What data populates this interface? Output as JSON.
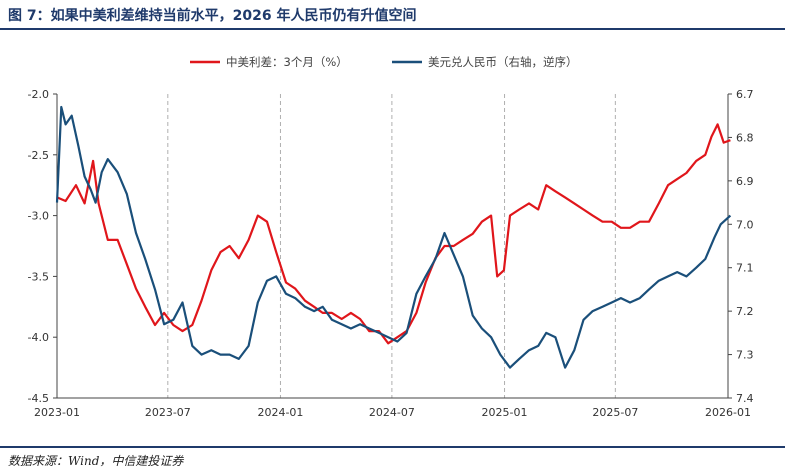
{
  "header": {
    "title": "图 7：如果中美利差维持当前水平，2026 年人民币仍有升值空间"
  },
  "footer": {
    "source": "数据来源：Wind，中信建投证券"
  },
  "chart_data": {
    "type": "line",
    "title": "",
    "legend_placement": "top-center",
    "grid": "vertical dashed gridlines at each x tick",
    "x_axis": {
      "ticks": [
        "2023-01",
        "2023-07",
        "2024-01",
        "2024-07",
        "2025-01",
        "2025-07",
        "2026-01"
      ],
      "range": [
        "2023-01",
        "2026-01"
      ]
    },
    "y_left": {
      "range": [
        -4.5,
        -2.0
      ],
      "ticks": [
        -2.0,
        -2.5,
        -3.0,
        -3.5,
        -4.0,
        -4.5
      ],
      "tick_labels": [
        "-2.0",
        "-2.5",
        "-3.0",
        "-3.5",
        "-4.0",
        "-4.5"
      ]
    },
    "y_right": {
      "range": [
        6.7,
        7.4
      ],
      "inverted": true,
      "ticks": [
        6.7,
        6.8,
        6.9,
        7.0,
        7.1,
        7.2,
        7.3,
        7.4
      ],
      "tick_labels": [
        "6.7",
        "6.8",
        "6.9",
        "7.0",
        "7.1",
        "7.2",
        "7.3",
        "7.4"
      ]
    },
    "series": [
      {
        "name": "中美利差：3个月（%）",
        "axis": "left",
        "color": "#e0161b",
        "points": [
          [
            "2023-01-01",
            -2.85
          ],
          [
            "2023-01-15",
            -2.88
          ],
          [
            "2023-02-01",
            -2.75
          ],
          [
            "2023-02-15",
            -2.9
          ],
          [
            "2023-03-01",
            -2.55
          ],
          [
            "2023-03-10",
            -2.9
          ],
          [
            "2023-03-25",
            -3.2
          ],
          [
            "2023-04-10",
            -3.2
          ],
          [
            "2023-04-25",
            -3.4
          ],
          [
            "2023-05-10",
            -3.6
          ],
          [
            "2023-05-25",
            -3.75
          ],
          [
            "2023-06-10",
            -3.9
          ],
          [
            "2023-06-25",
            -3.8
          ],
          [
            "2023-07-10",
            -3.9
          ],
          [
            "2023-07-25",
            -3.95
          ],
          [
            "2023-08-10",
            -3.9
          ],
          [
            "2023-08-25",
            -3.7
          ],
          [
            "2023-09-10",
            -3.45
          ],
          [
            "2023-09-25",
            -3.3
          ],
          [
            "2023-10-10",
            -3.25
          ],
          [
            "2023-10-25",
            -3.35
          ],
          [
            "2023-11-10",
            -3.2
          ],
          [
            "2023-11-25",
            -3.0
          ],
          [
            "2023-12-10",
            -3.05
          ],
          [
            "2023-12-25",
            -3.3
          ],
          [
            "2024-01-10",
            -3.55
          ],
          [
            "2024-01-25",
            -3.6
          ],
          [
            "2024-02-10",
            -3.7
          ],
          [
            "2024-02-25",
            -3.75
          ],
          [
            "2024-03-10",
            -3.8
          ],
          [
            "2024-03-25",
            -3.8
          ],
          [
            "2024-04-10",
            -3.85
          ],
          [
            "2024-04-25",
            -3.8
          ],
          [
            "2024-05-10",
            -3.85
          ],
          [
            "2024-05-25",
            -3.95
          ],
          [
            "2024-06-10",
            -3.95
          ],
          [
            "2024-06-25",
            -4.05
          ],
          [
            "2024-07-10",
            -4.0
          ],
          [
            "2024-07-25",
            -3.95
          ],
          [
            "2024-08-10",
            -3.8
          ],
          [
            "2024-08-25",
            -3.55
          ],
          [
            "2024-09-10",
            -3.35
          ],
          [
            "2024-09-25",
            -3.25
          ],
          [
            "2024-10-10",
            -3.25
          ],
          [
            "2024-10-25",
            -3.2
          ],
          [
            "2024-11-10",
            -3.15
          ],
          [
            "2024-11-25",
            -3.05
          ],
          [
            "2024-12-10",
            -3.0
          ],
          [
            "2024-12-20",
            -3.5
          ],
          [
            "2024-12-31",
            -3.45
          ],
          [
            "2025-01-10",
            -3.0
          ],
          [
            "2025-01-25",
            -2.95
          ],
          [
            "2025-02-10",
            -2.9
          ],
          [
            "2025-02-25",
            -2.95
          ],
          [
            "2025-03-10",
            -2.75
          ],
          [
            "2025-03-25",
            -2.8
          ],
          [
            "2025-04-10",
            -2.85
          ],
          [
            "2025-04-25",
            -2.9
          ],
          [
            "2025-05-10",
            -2.95
          ],
          [
            "2025-05-25",
            -3.0
          ],
          [
            "2025-06-10",
            -3.05
          ],
          [
            "2025-06-25",
            -3.05
          ],
          [
            "2025-07-10",
            -3.1
          ],
          [
            "2025-07-25",
            -3.1
          ],
          [
            "2025-08-10",
            -3.05
          ],
          [
            "2025-08-25",
            -3.05
          ],
          [
            "2025-09-10",
            -2.9
          ],
          [
            "2025-09-25",
            -2.75
          ],
          [
            "2025-10-10",
            -2.7
          ],
          [
            "2025-10-25",
            -2.65
          ],
          [
            "2025-11-10",
            -2.55
          ],
          [
            "2025-11-25",
            -2.5
          ],
          [
            "2025-12-05",
            -2.35
          ],
          [
            "2025-12-15",
            -2.25
          ],
          [
            "2025-12-25",
            -2.4
          ],
          [
            "2026-01-05",
            -2.38
          ]
        ]
      },
      {
        "name": "美元兑人民币（右轴，逆序）",
        "axis": "right",
        "color": "#1a4f7a",
        "points": [
          [
            "2023-01-01",
            6.95
          ],
          [
            "2023-01-08",
            6.73
          ],
          [
            "2023-01-15",
            6.77
          ],
          [
            "2023-01-25",
            6.75
          ],
          [
            "2023-02-05",
            6.82
          ],
          [
            "2023-02-15",
            6.89
          ],
          [
            "2023-02-25",
            6.92
          ],
          [
            "2023-03-05",
            6.95
          ],
          [
            "2023-03-15",
            6.88
          ],
          [
            "2023-03-25",
            6.85
          ],
          [
            "2023-04-10",
            6.88
          ],
          [
            "2023-04-25",
            6.93
          ],
          [
            "2023-05-10",
            7.02
          ],
          [
            "2023-05-25",
            7.08
          ],
          [
            "2023-06-10",
            7.15
          ],
          [
            "2023-06-25",
            7.23
          ],
          [
            "2023-07-10",
            7.22
          ],
          [
            "2023-07-25",
            7.18
          ],
          [
            "2023-08-10",
            7.28
          ],
          [
            "2023-08-25",
            7.3
          ],
          [
            "2023-09-10",
            7.29
          ],
          [
            "2023-09-25",
            7.3
          ],
          [
            "2023-10-10",
            7.3
          ],
          [
            "2023-10-25",
            7.31
          ],
          [
            "2023-11-10",
            7.28
          ],
          [
            "2023-11-25",
            7.18
          ],
          [
            "2023-12-10",
            7.13
          ],
          [
            "2023-12-25",
            7.12
          ],
          [
            "2024-01-10",
            7.16
          ],
          [
            "2024-01-25",
            7.17
          ],
          [
            "2024-02-10",
            7.19
          ],
          [
            "2024-02-25",
            7.2
          ],
          [
            "2024-03-10",
            7.19
          ],
          [
            "2024-03-25",
            7.22
          ],
          [
            "2024-04-10",
            7.23
          ],
          [
            "2024-04-25",
            7.24
          ],
          [
            "2024-05-10",
            7.23
          ],
          [
            "2024-05-25",
            7.24
          ],
          [
            "2024-06-10",
            7.25
          ],
          [
            "2024-06-25",
            7.26
          ],
          [
            "2024-07-10",
            7.27
          ],
          [
            "2024-07-25",
            7.25
          ],
          [
            "2024-08-10",
            7.16
          ],
          [
            "2024-08-25",
            7.12
          ],
          [
            "2024-09-10",
            7.08
          ],
          [
            "2024-09-25",
            7.02
          ],
          [
            "2024-10-10",
            7.07
          ],
          [
            "2024-10-25",
            7.12
          ],
          [
            "2024-11-10",
            7.21
          ],
          [
            "2024-11-25",
            7.24
          ],
          [
            "2024-12-10",
            7.26
          ],
          [
            "2024-12-25",
            7.3
          ],
          [
            "2025-01-10",
            7.33
          ],
          [
            "2025-01-25",
            7.31
          ],
          [
            "2025-02-10",
            7.29
          ],
          [
            "2025-02-25",
            7.28
          ],
          [
            "2025-03-10",
            7.25
          ],
          [
            "2025-03-25",
            7.26
          ],
          [
            "2025-04-10",
            7.33
          ],
          [
            "2025-04-25",
            7.29
          ],
          [
            "2025-05-10",
            7.22
          ],
          [
            "2025-05-25",
            7.2
          ],
          [
            "2025-06-10",
            7.19
          ],
          [
            "2025-06-25",
            7.18
          ],
          [
            "2025-07-10",
            7.17
          ],
          [
            "2025-07-25",
            7.18
          ],
          [
            "2025-08-10",
            7.17
          ],
          [
            "2025-08-25",
            7.15
          ],
          [
            "2025-09-10",
            7.13
          ],
          [
            "2025-09-25",
            7.12
          ],
          [
            "2025-10-10",
            7.11
          ],
          [
            "2025-10-25",
            7.12
          ],
          [
            "2025-11-10",
            7.1
          ],
          [
            "2025-11-25",
            7.08
          ],
          [
            "2025-12-10",
            7.03
          ],
          [
            "2025-12-20",
            7.0
          ],
          [
            "2026-01-05",
            6.98
          ]
        ]
      }
    ]
  }
}
